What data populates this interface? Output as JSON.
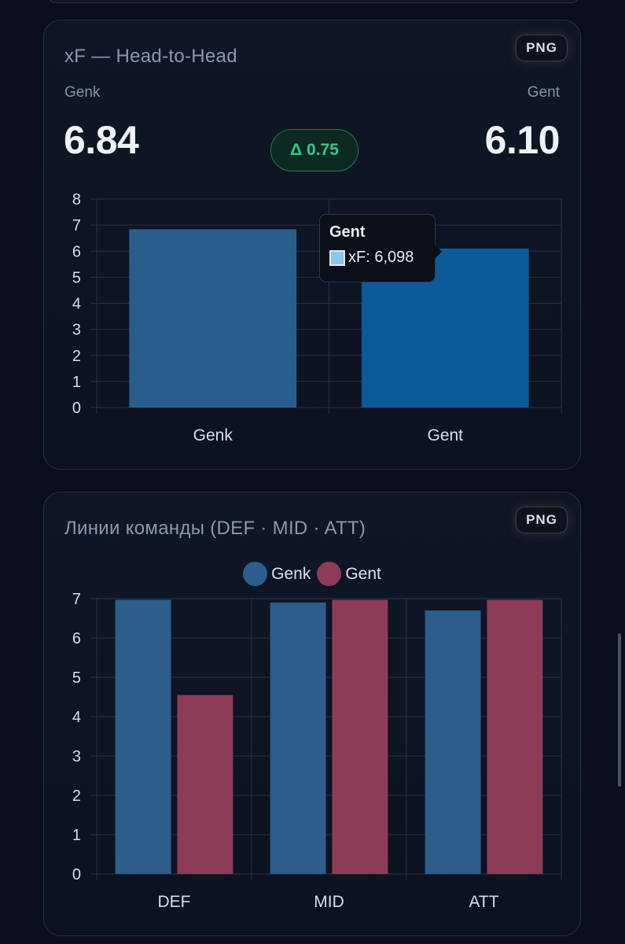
{
  "h2h": {
    "title": "xF — Head-to-Head",
    "export_label": "PNG",
    "team_left": "Genk",
    "team_right": "Gent",
    "value_left": "6.84",
    "value_right": "6.10",
    "delta": "Δ 0.75",
    "tooltip": {
      "title": "Gent",
      "row": "xF: 6,098"
    }
  },
  "lines": {
    "title": "Линии команды (DEF · MID · ATT)",
    "export_label": "PNG",
    "legend": [
      {
        "label": "Genk",
        "color": "#2d5e8b"
      },
      {
        "label": "Gent",
        "color": "#8c3c56"
      }
    ]
  },
  "colors": {
    "genk_bar": "#2b5d8c",
    "gent_bar": "#0c5a9a",
    "genk_line": "#2d5e8b",
    "gent_line": "#8c3c56",
    "grid": "#28324a",
    "tick": "#d8dde6"
  },
  "chart_data": [
    {
      "type": "bar",
      "title": "xF — Head-to-Head",
      "categories": [
        "Genk",
        "Gent"
      ],
      "values": [
        6.84,
        6.098
      ],
      "ylim": [
        0,
        8
      ],
      "yticks": [
        0,
        1,
        2,
        3,
        4,
        5,
        6,
        7,
        8
      ],
      "xlabel": "",
      "ylabel": ""
    },
    {
      "type": "bar",
      "title": "Линии команды (DEF · MID · ATT)",
      "categories": [
        "DEF",
        "MID",
        "ATT"
      ],
      "series": [
        {
          "name": "Genk",
          "values": [
            6.97,
            6.9,
            6.7
          ]
        },
        {
          "name": "Gent",
          "values": [
            4.55,
            6.97,
            6.97
          ]
        }
      ],
      "ylim": [
        0,
        7
      ],
      "yticks": [
        0,
        1,
        2,
        3,
        4,
        5,
        6,
        7
      ],
      "legend": "top-center",
      "xlabel": "",
      "ylabel": ""
    }
  ]
}
